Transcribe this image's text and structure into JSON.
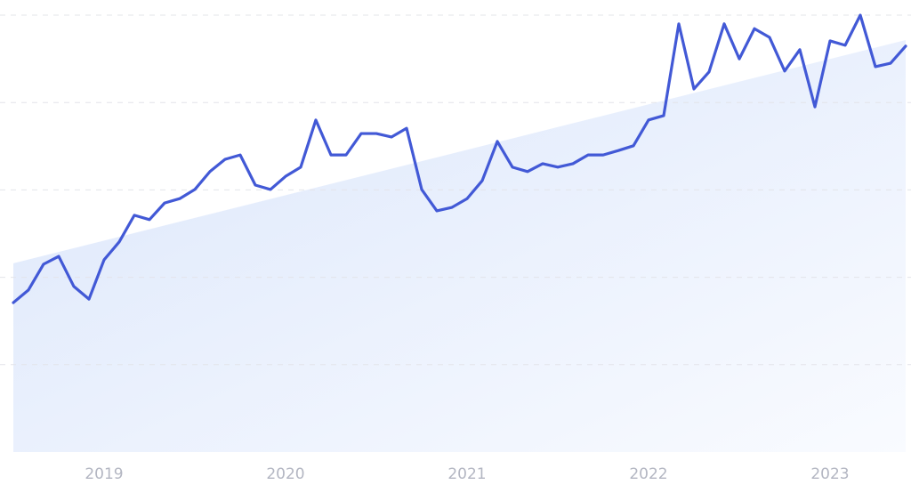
{
  "chart_data": {
    "type": "line",
    "categories": [
      null,
      null,
      null,
      null,
      null,
      null,
      "2019",
      null,
      null,
      null,
      null,
      null,
      null,
      null,
      null,
      null,
      null,
      null,
      "2020",
      null,
      null,
      null,
      null,
      null,
      null,
      null,
      null,
      null,
      null,
      null,
      "2021",
      null,
      null,
      null,
      null,
      null,
      null,
      null,
      null,
      null,
      null,
      null,
      "2022",
      null,
      null,
      null,
      null,
      null,
      null,
      null,
      null,
      null,
      null,
      null,
      "2023",
      null,
      null,
      null,
      null,
      null
    ],
    "series": [
      {
        "color": "#4259d6",
        "values": [
          34.2,
          37.1,
          43.0,
          44.8,
          37.9,
          35.0,
          44.0,
          48.1,
          54.2,
          53.2,
          57.0,
          58.0,
          60.1,
          64.2,
          67.0,
          68.0,
          61.1,
          60.1,
          63.1,
          65.2,
          76.0,
          68.0,
          68.0,
          72.9,
          72.9,
          72.1,
          74.1,
          60.1,
          55.2,
          56.0,
          58.0,
          62.1,
          71.1,
          65.2,
          64.2,
          66.0,
          65.2,
          66.0,
          68.0,
          68.0,
          69.0,
          70.1,
          76.0,
          77.0,
          98.0,
          83.1,
          87.0,
          98.0,
          90.0,
          96.9,
          94.9,
          87.2,
          92.1,
          79.0,
          94.1,
          93.1,
          100,
          88.2,
          89.0,
          92.9
        ]
      }
    ],
    "trend": {
      "start": 43.2,
      "end": 94.3,
      "color": "#dde8fb"
    },
    "ylim": [
      0,
      100
    ],
    "yticks": [
      20,
      40,
      60,
      80,
      100
    ],
    "grid": true
  }
}
